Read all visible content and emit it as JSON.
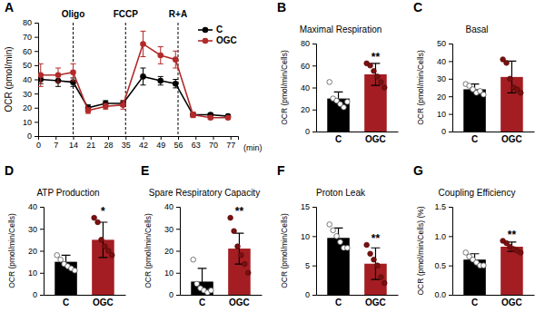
{
  "chart_data": [
    {
      "panel": "A",
      "type": "line",
      "ylabel": "OCR (pmol/min)",
      "xlabel": "(min)",
      "x": [
        1,
        8,
        14,
        20,
        27,
        34,
        42,
        49,
        55,
        62,
        69,
        76
      ],
      "xlim": [
        0,
        80
      ],
      "xticks": [
        0,
        7,
        14,
        21,
        28,
        35,
        42,
        49,
        56,
        63,
        70,
        77
      ],
      "ylim": [
        0,
        80
      ],
      "yticks": [
        0,
        10,
        20,
        30,
        40,
        50,
        60,
        70,
        80
      ],
      "legend": "upper right",
      "marker": "circle",
      "annotations": [
        {
          "text": "Oligo",
          "x": 14
        },
        {
          "text": "FCCP",
          "x": 35
        },
        {
          "text": "R+A",
          "x": 56
        }
      ],
      "series": [
        {
          "name": "C",
          "color": "#000000",
          "values": [
            40,
            39,
            38,
            20,
            23,
            23,
            42,
            39,
            37,
            15,
            15,
            14
          ],
          "errors": [
            3,
            4,
            3,
            2,
            2,
            2,
            6,
            3,
            3,
            1,
            1,
            1
          ]
        },
        {
          "name": "OGC",
          "color": "#b22a2a",
          "values": [
            43,
            43,
            45,
            18,
            21,
            22,
            65,
            57,
            54,
            15,
            13,
            13
          ],
          "errors": [
            8,
            5,
            6,
            2,
            2,
            3,
            9,
            6,
            6,
            2,
            1,
            1
          ]
        }
      ]
    },
    {
      "panel": "B",
      "type": "bar",
      "title": "Maximal Respiration",
      "ylabel": "OCR (pmol/min/Cells)",
      "categories": [
        "C",
        "OGC"
      ],
      "values": [
        30,
        52
      ],
      "errors": [
        6,
        10
      ],
      "points": [
        [
          45,
          30,
          28,
          25,
          22,
          27
        ],
        [
          62,
          60,
          55,
          50,
          45,
          40
        ]
      ],
      "colors": [
        "#000000",
        "#a31d22"
      ],
      "ylim": [
        0,
        80
      ],
      "yticks": [
        0,
        20,
        40,
        60,
        80
      ],
      "annotations": [
        {
          "category": "OGC",
          "text": "**"
        }
      ]
    },
    {
      "panel": "C",
      "type": "bar",
      "title": "Basal",
      "ylabel": "OCR (pmol/min/Cells)",
      "categories": [
        "C",
        "OGC"
      ],
      "values": [
        24,
        31
      ],
      "errors": [
        3,
        9
      ],
      "points": [
        [
          27,
          26,
          24,
          22,
          23,
          21
        ],
        [
          41,
          39,
          30,
          25,
          24,
          22
        ]
      ],
      "colors": [
        "#000000",
        "#a31d22"
      ],
      "ylim": [
        0,
        50
      ],
      "yticks": [
        0,
        10,
        20,
        30,
        40,
        50
      ]
    },
    {
      "panel": "D",
      "type": "bar",
      "title": "ATP Production",
      "ylabel": "OCR (pmol/min/Cells)",
      "categories": [
        "C",
        "OGC"
      ],
      "values": [
        15,
        25
      ],
      "errors": [
        3,
        8
      ],
      "points": [
        [
          18,
          16,
          14,
          13,
          12,
          11
        ],
        [
          35,
          33,
          25,
          22,
          20,
          18
        ]
      ],
      "colors": [
        "#000000",
        "#a31d22"
      ],
      "ylim": [
        0,
        40
      ],
      "yticks": [
        0,
        10,
        20,
        30,
        40
      ],
      "annotations": [
        {
          "category": "OGC",
          "text": "*"
        }
      ]
    },
    {
      "panel": "E",
      "type": "bar",
      "title": "Spare Respiratory Capacity",
      "ylabel": "OCR (pmol/min/Cells)",
      "categories": [
        "C",
        "OGC"
      ],
      "values": [
        6,
        21
      ],
      "errors": [
        6,
        7
      ],
      "points": [
        [
          16,
          5,
          3,
          2,
          1,
          2
        ],
        [
          35,
          29,
          22,
          18,
          14,
          10
        ]
      ],
      "colors": [
        "#000000",
        "#a31d22"
      ],
      "ylim": [
        0,
        40
      ],
      "yticks": [
        0,
        10,
        20,
        30,
        40
      ],
      "annotations": [
        {
          "category": "OGC",
          "text": "**"
        }
      ]
    },
    {
      "panel": "F",
      "type": "bar",
      "title": "Proton Leak",
      "ylabel": "OCR (pmol/min/Cells)",
      "categories": [
        "C",
        "OGC"
      ],
      "values": [
        9.7,
        5.3
      ],
      "errors": [
        1.7,
        2.7
      ],
      "points": [
        [
          12,
          11,
          10,
          9,
          8,
          8
        ],
        [
          8.5,
          7,
          6,
          5,
          3,
          2
        ]
      ],
      "colors": [
        "#000000",
        "#a31d22"
      ],
      "ylim": [
        0,
        15
      ],
      "yticks": [
        0,
        5,
        10,
        15
      ],
      "annotations": [
        {
          "category": "OGC",
          "text": "**"
        }
      ]
    },
    {
      "panel": "G",
      "type": "bar",
      "title": "Coupling Efficiency",
      "ylabel": "OCR (pmol/min/Cells) (%)",
      "categories": [
        "C",
        "OGC"
      ],
      "values": [
        0.6,
        0.82
      ],
      "errors": [
        0.1,
        0.08
      ],
      "points": [
        [
          0.72,
          0.65,
          0.6,
          0.55,
          0.5,
          0.5
        ],
        [
          0.92,
          0.88,
          0.82,
          0.78,
          0.75,
          0.72
        ]
      ],
      "colors": [
        "#000000",
        "#a31d22"
      ],
      "ylim": [
        0,
        1.5
      ],
      "yticks": [
        {
          "value": 0,
          "label": "0.0"
        },
        0.5,
        {
          "value": 1,
          "label": "1.0"
        },
        1.5
      ],
      "annotations": [
        {
          "category": "OGC",
          "text": "**"
        }
      ]
    }
  ]
}
